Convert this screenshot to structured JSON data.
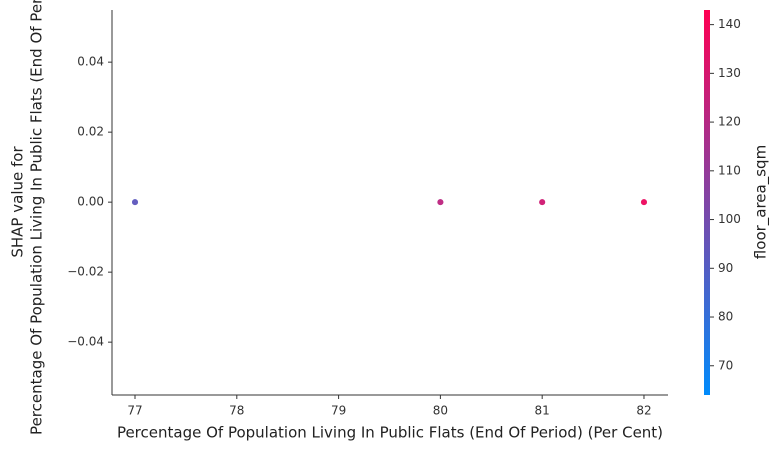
{
  "chart_data": {
    "type": "scatter",
    "xlabel": "Percentage Of Population Living In Public Flats (End Of Period) (Per Cent)",
    "ylabel": [
      "SHAP value for",
      "Percentage Of Population Living In Public Flats (End Of Period)"
    ],
    "x": [
      77,
      77,
      80,
      80,
      81,
      81,
      82,
      82
    ],
    "values": [
      0,
      0,
      0,
      0,
      0,
      0,
      0,
      0
    ],
    "color_values": [
      85,
      95,
      110,
      125,
      120,
      130,
      125,
      140
    ],
    "colorbar_label": "floor_area_sqm",
    "colormap": [
      "#008bfb",
      "#ff0052"
    ],
    "clim": [
      64,
      143
    ],
    "cticks": [
      70,
      80,
      90,
      100,
      110,
      120,
      130,
      140
    ],
    "xlim": [
      76.774,
      82.236
    ],
    "xticks": [
      77,
      78,
      79,
      80,
      81,
      82
    ],
    "ylim": [
      -0.0551,
      0.0549
    ],
    "yticks": [
      {
        "value": -0.04,
        "label": "−0.04"
      },
      {
        "value": -0.02,
        "label": "−0.02"
      },
      {
        "value": 0,
        "label": "0.00"
      },
      0.02,
      0.04
    ]
  }
}
